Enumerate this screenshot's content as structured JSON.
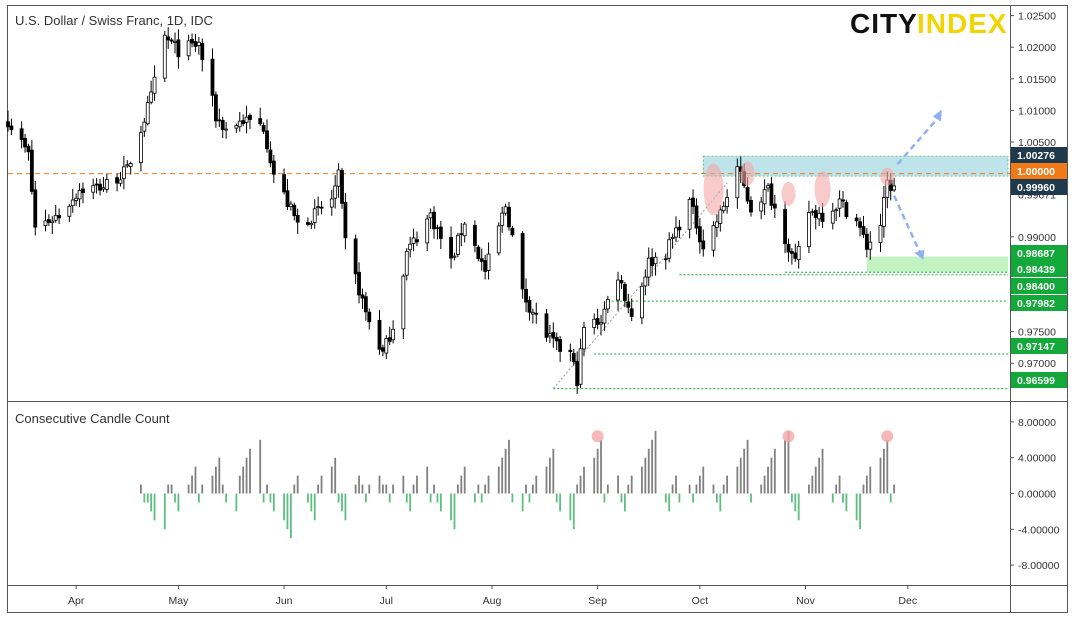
{
  "header": {
    "symbol_title": "U.S. Dollar / Swiss Franc, 1D, IDC",
    "logo_city": "CITY",
    "logo_index": "INDEX"
  },
  "colors": {
    "up_candle": "#ffffff",
    "down_candle": "#000000",
    "resistance_zone": "#a9dbe3",
    "support_zone": "#b4f0b4",
    "level_green": "#13a83a",
    "level_dark": "#1f3a4d",
    "level_orange": "#f07a1a",
    "hist_up": "#808080",
    "hist_down": "#5dbf7f",
    "peak_marker": "#f4a7a7",
    "arrow": "#8fb2ee",
    "logo_yellow": "#f2d500"
  },
  "main_axis": {
    "ticks": [
      "1.02500",
      "1.02000",
      "1.01500",
      "1.01000",
      "1.00500",
      "0.99671",
      "0.99000",
      "0.97500",
      "0.97000"
    ],
    "ylim": [
      0.9645,
      1.0262
    ],
    "level_labels": [
      {
        "text": "1.00276",
        "value": 1.00276,
        "style": "dark"
      },
      {
        "text": "1.00000",
        "value": 1.0,
        "style": "orange"
      },
      {
        "text": "0.99960",
        "value": 0.9996,
        "style": "dark"
      },
      {
        "text": "0.98687",
        "value": 0.98687,
        "style": "green"
      },
      {
        "text": "0.98439",
        "value": 0.98439,
        "style": "green"
      },
      {
        "text": "0.98400",
        "value": 0.984,
        "style": "green"
      },
      {
        "text": "0.97982",
        "value": 0.97982,
        "style": "green"
      },
      {
        "text": "0.97147",
        "value": 0.97147,
        "style": "green"
      },
      {
        "text": "0.96599",
        "value": 0.96599,
        "style": "green"
      }
    ]
  },
  "x_axis": {
    "months": [
      "Apr",
      "May",
      "Jun",
      "Jul",
      "Aug",
      "Sep",
      "Oct",
      "Nov",
      "Dec"
    ]
  },
  "indicator": {
    "title": "Consecutive Candle Count",
    "ticks": [
      "8.00000",
      "4.00000",
      "0.00000",
      "-4.00000",
      "-8.00000"
    ],
    "ylim": [
      -10,
      10
    ]
  },
  "chart_data": [
    {
      "type": "candlestick",
      "title": "U.S. Dollar / Swiss Franc, 1D, IDC",
      "ylim": [
        0.9645,
        1.0262
      ],
      "x_range": [
        "2020-03-12",
        "2020-12-31"
      ],
      "path_points": [
        [
          "2020-03-12",
          1.0085
        ],
        [
          "2020-03-18",
          1.003
        ],
        [
          "2020-03-20",
          0.9915
        ],
        [
          "2020-03-27",
          0.9935
        ],
        [
          "2020-04-02",
          0.9975
        ],
        [
          "2020-04-09",
          0.998
        ],
        [
          "2020-04-16",
          1.0005
        ],
        [
          "2020-04-23",
          1.012
        ],
        [
          "2020-04-27",
          1.0215
        ],
        [
          "2020-05-01",
          1.0195
        ],
        [
          "2020-05-07",
          1.0205
        ],
        [
          "2020-05-12",
          1.009
        ],
        [
          "2020-05-15",
          1.007
        ],
        [
          "2020-05-20",
          1.0085
        ],
        [
          "2020-05-26",
          1.0075
        ],
        [
          "2020-05-29",
          1.0
        ],
        [
          "2020-06-01",
          0.9965
        ],
        [
          "2020-06-05",
          0.992
        ],
        [
          "2020-06-10",
          0.9935
        ],
        [
          "2020-06-15",
          0.996
        ],
        [
          "2020-06-17",
          0.9995
        ],
        [
          "2020-06-19",
          0.989
        ],
        [
          "2020-06-25",
          0.978
        ],
        [
          "2020-06-30",
          0.9715
        ],
        [
          "2020-07-03",
          0.976
        ],
        [
          "2020-07-07",
          0.9875
        ],
        [
          "2020-07-14",
          0.9935
        ],
        [
          "2020-07-20",
          0.986
        ],
        [
          "2020-07-24",
          0.9925
        ],
        [
          "2020-07-30",
          0.9845
        ],
        [
          "2020-08-05",
          0.995
        ],
        [
          "2020-08-07",
          0.99
        ],
        [
          "2020-08-10",
          0.981
        ],
        [
          "2020-08-17",
          0.9745
        ],
        [
          "2020-08-20",
          0.9725
        ],
        [
          "2020-08-24",
          0.9715
        ],
        [
          "2020-08-26",
          0.9675
        ],
        [
          "2020-08-28",
          0.9755
        ],
        [
          "2020-09-02",
          0.977
        ],
        [
          "2020-09-07",
          0.984
        ],
        [
          "2020-09-11",
          0.9775
        ],
        [
          "2020-09-16",
          0.986
        ],
        [
          "2020-09-21",
          0.9875
        ],
        [
          "2020-09-24",
          0.991
        ],
        [
          "2020-09-28",
          0.9955
        ],
        [
          "2020-10-02",
          0.9885
        ],
        [
          "2020-10-07",
          0.9935
        ],
        [
          "2020-10-12",
          1.001
        ],
        [
          "2020-10-16",
          0.9945
        ],
        [
          "2020-10-21",
          0.9975
        ],
        [
          "2020-10-26",
          0.99
        ],
        [
          "2020-10-29",
          0.9855
        ],
        [
          "2020-11-02",
          0.994
        ],
        [
          "2020-11-06",
          0.9935
        ],
        [
          "2020-11-11",
          0.9955
        ],
        [
          "2020-11-16",
          0.9925
        ],
        [
          "2020-11-19",
          0.9885
        ],
        [
          "2020-11-23",
          0.992
        ],
        [
          "2020-11-25",
          0.9985
        ],
        [
          "2020-11-27",
          0.9975
        ]
      ]
    },
    {
      "type": "bar",
      "title": "Consecutive Candle Count",
      "ylim": [
        -10,
        10
      ],
      "x_range": [
        "2020-03-12",
        "2020-11-27"
      ],
      "values": [
        1,
        -1,
        -1,
        -2,
        -3,
        -4,
        1,
        1,
        -1,
        -2,
        1,
        2,
        3,
        -1,
        1,
        2,
        3,
        4,
        1,
        -1,
        -2,
        2,
        3,
        4,
        5,
        6,
        -1,
        1,
        -1,
        -2,
        -3,
        -4,
        -5,
        1,
        2,
        -1,
        -2,
        -3,
        1,
        2,
        3,
        4,
        -1,
        -2,
        -3,
        1,
        2,
        1,
        -1,
        1,
        2,
        1,
        1,
        -1,
        1,
        2,
        -1,
        -2,
        1,
        2,
        3,
        -1,
        1,
        -1,
        -2,
        -3,
        -4,
        1,
        2,
        3,
        -1,
        1,
        -1,
        1,
        2,
        3,
        4,
        5,
        6,
        -1,
        -2,
        1,
        -1,
        1,
        2,
        3,
        4,
        5,
        -1,
        -2,
        -3,
        -4,
        1,
        2,
        3,
        4,
        5,
        6,
        -1,
        1,
        2,
        -1,
        -2,
        1,
        2,
        3,
        4,
        5,
        6,
        7,
        -1,
        -2,
        1,
        2,
        -1,
        1,
        -1,
        1,
        2,
        3,
        1,
        -1,
        -2,
        1,
        2,
        3,
        4,
        5,
        6,
        -1,
        1,
        2,
        3,
        4,
        5,
        6,
        7,
        -1,
        -2,
        -3,
        1,
        2,
        3,
        4,
        5,
        -1,
        1,
        2,
        -1,
        -2,
        -3,
        -4,
        1,
        2,
        3,
        4,
        5,
        6,
        -1,
        1
      ],
      "peak_markers": [
        {
          "date": "2020-09-01",
          "value": 6
        },
        {
          "date": "2020-10-27",
          "value": 6
        },
        {
          "date": "2020-11-25",
          "value": 6
        }
      ]
    }
  ]
}
